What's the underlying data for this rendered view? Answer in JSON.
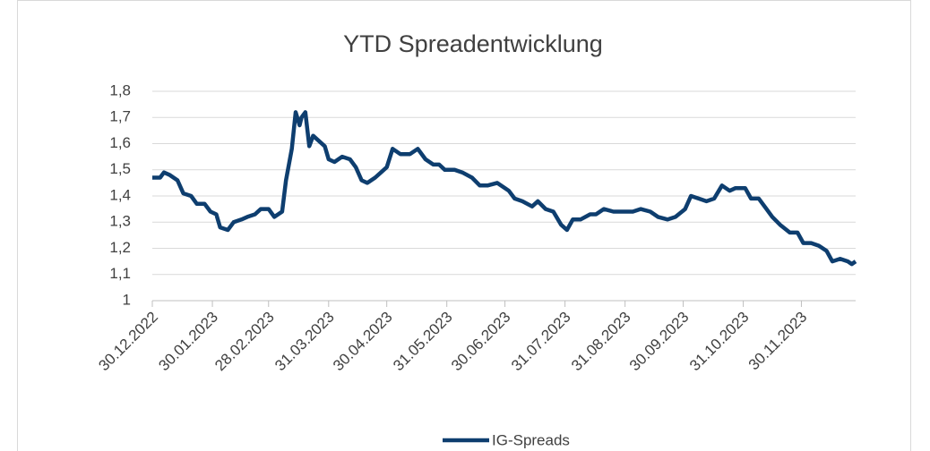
{
  "chart_data": {
    "type": "line",
    "title": "YTD Spreadentwicklung",
    "x": [
      "30.12.2022",
      "03.01.2023",
      "05.01.2023",
      "08.01.2023",
      "12.01.2023",
      "15.01.2023",
      "19.01.2023",
      "22.01.2023",
      "26.01.2023",
      "29.01.2023",
      "01.02.2023",
      "03.02.2023",
      "07.02.2023",
      "10.02.2023",
      "14.02.2023",
      "17.02.2023",
      "21.02.2023",
      "24.02.2023",
      "28.02.2023",
      "03.03.2023",
      "07.03.2023",
      "09.03.2023",
      "12.03.2023",
      "14.03.2023",
      "16.03.2023",
      "17.03.2023",
      "19.03.2023",
      "21.03.2023",
      "23.03.2023",
      "26.03.2023",
      "29.03.2023",
      "31.03.2023",
      "03.04.2023",
      "07.04.2023",
      "11.04.2023",
      "14.04.2023",
      "17.04.2023",
      "20.04.2023",
      "24.04.2023",
      "27.04.2023",
      "30.04.2023",
      "03.05.2023",
      "07.05.2023",
      "12.05.2023",
      "16.05.2023",
      "20.05.2023",
      "24.05.2023",
      "27.05.2023",
      "30.05.2023",
      "04.06.2023",
      "08.06.2023",
      "13.06.2023",
      "17.06.2023",
      "21.06.2023",
      "26.06.2023",
      "30.06.2023",
      "02.07.2023",
      "05.07.2023",
      "09.07.2023",
      "14.07.2023",
      "17.07.2023",
      "21.07.2023",
      "25.07.2023",
      "29.07.2023",
      "01.08.2023",
      "04.08.2023",
      "08.08.2023",
      "13.08.2023",
      "16.08.2023",
      "20.08.2023",
      "25.08.2023",
      "31.08.2023",
      "04.09.2023",
      "08.09.2023",
      "13.09.2023",
      "17.09.2023",
      "22.09.2023",
      "26.09.2023",
      "01.10.2023",
      "04.10.2023",
      "08.10.2023",
      "12.10.2023",
      "16.10.2023",
      "20.10.2023",
      "24.10.2023",
      "27.10.2023",
      "01.11.2023",
      "04.11.2023",
      "08.11.2023",
      "12.11.2023",
      "15.11.2023",
      "19.11.2023",
      "24.11.2023",
      "28.11.2023",
      "01.12.2023",
      "05.12.2023",
      "09.12.2023",
      "13.12.2023",
      "16.12.2023",
      "20.12.2023",
      "24.12.2023",
      "26.12.2023",
      "28.12.2023"
    ],
    "series": [
      {
        "name": "IG-Spreads",
        "color": "#0e3e6f",
        "values": [
          1.47,
          1.47,
          1.49,
          1.48,
          1.46,
          1.41,
          1.4,
          1.37,
          1.37,
          1.34,
          1.33,
          1.28,
          1.27,
          1.3,
          1.31,
          1.32,
          1.33,
          1.35,
          1.35,
          1.32,
          1.34,
          1.46,
          1.58,
          1.72,
          1.67,
          1.7,
          1.72,
          1.59,
          1.63,
          1.61,
          1.59,
          1.54,
          1.53,
          1.55,
          1.54,
          1.51,
          1.46,
          1.45,
          1.47,
          1.49,
          1.51,
          1.58,
          1.56,
          1.56,
          1.58,
          1.54,
          1.52,
          1.52,
          1.5,
          1.5,
          1.49,
          1.47,
          1.44,
          1.44,
          1.45,
          1.43,
          1.42,
          1.39,
          1.38,
          1.36,
          1.38,
          1.35,
          1.34,
          1.29,
          1.27,
          1.31,
          1.31,
          1.33,
          1.33,
          1.35,
          1.34,
          1.34,
          1.34,
          1.35,
          1.34,
          1.32,
          1.31,
          1.32,
          1.35,
          1.4,
          1.39,
          1.38,
          1.39,
          1.44,
          1.42,
          1.43,
          1.43,
          1.39,
          1.39,
          1.35,
          1.32,
          1.29,
          1.26,
          1.26,
          1.22,
          1.22,
          1.21,
          1.19,
          1.15,
          1.16,
          1.15,
          1.14,
          1.15
        ]
      }
    ],
    "xlim": [
      "30.12.2022",
      "28.12.2023"
    ],
    "xticks": [
      "30.12.2022",
      "30.01.2023",
      "28.02.2023",
      "31.03.2023",
      "30.04.2023",
      "31.05.2023",
      "30.06.2023",
      "31.07.2023",
      "31.08.2023",
      "30.09.2023",
      "31.10.2023",
      "30.11.2023"
    ],
    "ylim": [
      1,
      1.8
    ],
    "yticks": [
      1,
      {
        "value": 1.1,
        "label": "1,1"
      },
      {
        "value": 1.2,
        "label": "1,2"
      },
      {
        "value": 1.3,
        "label": "1,3"
      },
      {
        "value": 1.4,
        "label": "1,4"
      },
      {
        "value": 1.5,
        "label": "1,5"
      },
      {
        "value": 1.6,
        "label": "1,6"
      },
      {
        "value": 1.7,
        "label": "1,7"
      },
      {
        "value": 1.8,
        "label": "1,8"
      }
    ],
    "grid": true,
    "legend": "bottom"
  }
}
